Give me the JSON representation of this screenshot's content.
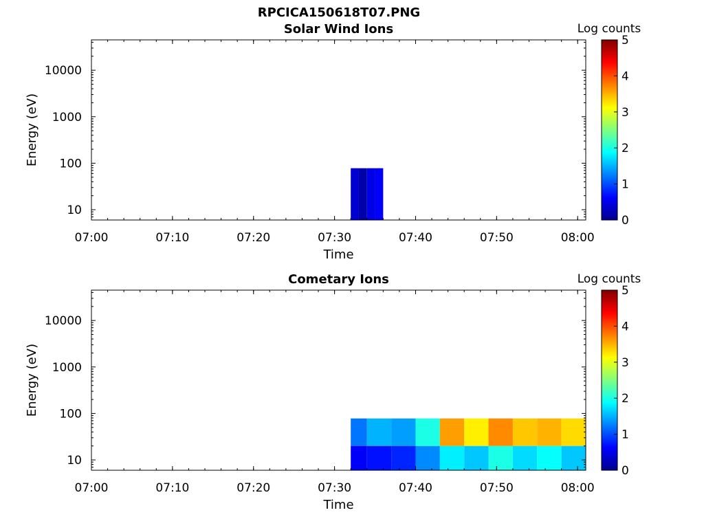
{
  "figure_title": "RPCICA150618T07.PNG",
  "chart_data": [
    {
      "type": "heatmap",
      "title": "Solar Wind Ions",
      "xlabel": "Time",
      "ylabel": "Energy (eV)",
      "x_ticks": [
        "07:00",
        "07:10",
        "07:20",
        "07:30",
        "07:40",
        "07:50",
        "08:00"
      ],
      "xlim": [
        "07:00",
        "08:01"
      ],
      "y_scale": "log",
      "y_ticks": [
        10,
        100,
        1000,
        10000
      ],
      "y_tick_labels": [
        "10",
        "100",
        "1000",
        "10000"
      ],
      "ylim": [
        6,
        45000
      ],
      "colorbar": {
        "label": "Log counts",
        "range": [
          0,
          5
        ],
        "ticks": [
          "0",
          "1",
          "2",
          "3",
          "4",
          "5"
        ],
        "colormap": "jet"
      },
      "cells": [
        {
          "t_start": "07:32",
          "t_end": "07:33",
          "e_min": 6,
          "e_max": 78,
          "log_counts": 0.4
        },
        {
          "t_start": "07:33",
          "t_end": "07:34",
          "e_min": 6,
          "e_max": 78,
          "log_counts": 0.2
        },
        {
          "t_start": "07:34",
          "t_end": "07:35",
          "e_min": 6,
          "e_max": 78,
          "log_counts": 0.5
        },
        {
          "t_start": "07:35",
          "t_end": "07:36",
          "e_min": 6,
          "e_max": 78,
          "log_counts": 0.6
        }
      ]
    },
    {
      "type": "heatmap",
      "title": "Cometary Ions",
      "xlabel": "Time",
      "ylabel": "Energy (eV)",
      "x_ticks": [
        "07:00",
        "07:10",
        "07:20",
        "07:30",
        "07:40",
        "07:50",
        "08:00"
      ],
      "xlim": [
        "07:00",
        "08:01"
      ],
      "y_scale": "log",
      "y_ticks": [
        10,
        100,
        1000,
        10000
      ],
      "y_tick_labels": [
        "10",
        "100",
        "1000",
        "10000"
      ],
      "ylim": [
        6,
        45000
      ],
      "colorbar": {
        "label": "Log counts",
        "range": [
          0,
          5
        ],
        "ticks": [
          "0",
          "1",
          "2",
          "3",
          "4",
          "5"
        ],
        "colormap": "jet"
      },
      "cells": [
        {
          "t_start": "07:32",
          "t_end": "07:34",
          "e_min": 6,
          "e_max": 20,
          "log_counts": 0.6
        },
        {
          "t_start": "07:32",
          "t_end": "07:34",
          "e_min": 20,
          "e_max": 78,
          "log_counts": 1.2
        },
        {
          "t_start": "07:34",
          "t_end": "07:37",
          "e_min": 6,
          "e_max": 20,
          "log_counts": 0.7
        },
        {
          "t_start": "07:34",
          "t_end": "07:37",
          "e_min": 20,
          "e_max": 78,
          "log_counts": 1.5
        },
        {
          "t_start": "07:37",
          "t_end": "07:40",
          "e_min": 6,
          "e_max": 20,
          "log_counts": 0.8
        },
        {
          "t_start": "07:37",
          "t_end": "07:40",
          "e_min": 20,
          "e_max": 78,
          "log_counts": 1.4
        },
        {
          "t_start": "07:40",
          "t_end": "07:43",
          "e_min": 6,
          "e_max": 20,
          "log_counts": 1.3
        },
        {
          "t_start": "07:40",
          "t_end": "07:43",
          "e_min": 20,
          "e_max": 78,
          "log_counts": 2.0
        },
        {
          "t_start": "07:43",
          "t_end": "07:46",
          "e_min": 6,
          "e_max": 20,
          "log_counts": 1.8
        },
        {
          "t_start": "07:43",
          "t_end": "07:46",
          "e_min": 20,
          "e_max": 78,
          "log_counts": 3.6
        },
        {
          "t_start": "07:46",
          "t_end": "07:49",
          "e_min": 6,
          "e_max": 20,
          "log_counts": 1.6
        },
        {
          "t_start": "07:46",
          "t_end": "07:49",
          "e_min": 20,
          "e_max": 78,
          "log_counts": 3.2
        },
        {
          "t_start": "07:49",
          "t_end": "07:52",
          "e_min": 6,
          "e_max": 20,
          "log_counts": 2.0
        },
        {
          "t_start": "07:49",
          "t_end": "07:52",
          "e_min": 20,
          "e_max": 78,
          "log_counts": 3.7
        },
        {
          "t_start": "07:52",
          "t_end": "07:55",
          "e_min": 6,
          "e_max": 20,
          "log_counts": 1.7
        },
        {
          "t_start": "07:52",
          "t_end": "07:55",
          "e_min": 20,
          "e_max": 78,
          "log_counts": 3.4
        },
        {
          "t_start": "07:55",
          "t_end": "07:58",
          "e_min": 6,
          "e_max": 20,
          "log_counts": 1.9
        },
        {
          "t_start": "07:55",
          "t_end": "07:58",
          "e_min": 20,
          "e_max": 78,
          "log_counts": 3.5
        },
        {
          "t_start": "07:58",
          "t_end": "08:01",
          "e_min": 6,
          "e_max": 20,
          "log_counts": 1.6
        },
        {
          "t_start": "07:58",
          "t_end": "08:01",
          "e_min": 20,
          "e_max": 78,
          "log_counts": 3.3
        }
      ]
    }
  ]
}
